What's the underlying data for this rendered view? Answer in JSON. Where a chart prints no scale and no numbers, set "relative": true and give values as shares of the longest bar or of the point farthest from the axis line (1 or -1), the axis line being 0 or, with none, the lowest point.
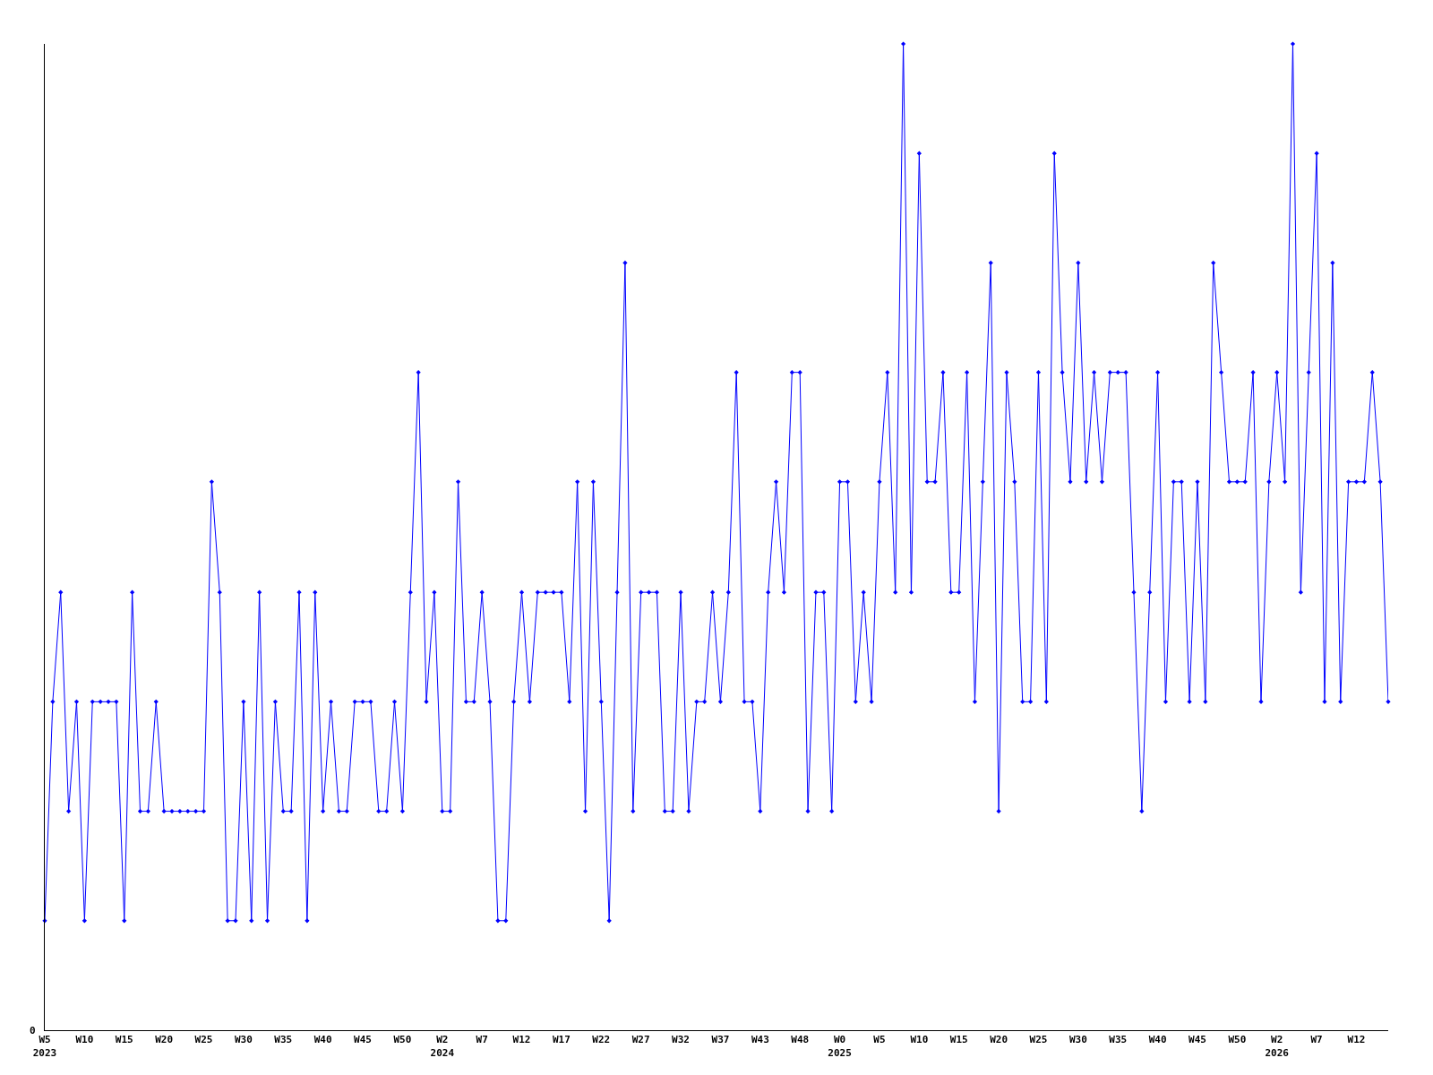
{
  "chart_data": {
    "type": "line",
    "relative": true,
    "marker": "diamond",
    "line_style": "solid",
    "grid": false,
    "annotations": [
      "0"
    ],
    "categories": [
      "W5\n2023",
      null,
      null,
      null,
      null,
      "W10",
      null,
      null,
      null,
      null,
      "W15",
      null,
      null,
      null,
      null,
      "W20",
      null,
      null,
      null,
      null,
      "W25",
      null,
      null,
      null,
      null,
      "W30",
      null,
      null,
      null,
      null,
      "W35",
      null,
      null,
      null,
      null,
      "W40",
      null,
      null,
      null,
      null,
      "W45",
      null,
      null,
      null,
      null,
      "W50",
      null,
      null,
      null,
      null,
      "W2\n2024",
      null,
      null,
      null,
      null,
      "W7",
      null,
      null,
      null,
      null,
      "W12",
      null,
      null,
      null,
      null,
      "W17",
      null,
      null,
      null,
      null,
      "W22",
      null,
      null,
      null,
      null,
      "W27",
      null,
      null,
      null,
      null,
      "W32",
      null,
      null,
      null,
      null,
      "W37",
      null,
      null,
      null,
      null,
      "W43",
      null,
      null,
      null,
      null,
      "W48",
      null,
      null,
      null,
      null,
      "W0\n2025",
      null,
      null,
      null,
      null,
      "W5",
      null,
      null,
      null,
      null,
      "W10",
      null,
      null,
      null,
      null,
      "W15",
      null,
      null,
      null,
      null,
      "W20",
      null,
      null,
      null,
      null,
      "W25",
      null,
      null,
      null,
      null,
      "W30",
      null,
      null,
      null,
      null,
      "W35",
      null,
      null,
      null,
      null,
      "W40",
      null,
      null,
      null,
      null,
      "W45",
      null,
      null,
      null,
      null,
      "W50",
      null,
      null,
      null,
      null,
      "W2\n2026",
      null,
      null,
      null,
      null,
      "W7",
      null,
      null,
      null,
      null,
      "W12",
      null,
      null,
      null,
      null
    ],
    "series": [
      {
        "color": "#0000ff",
        "values": [
          0.111,
          0.333,
          0.444,
          0.222,
          0.333,
          0.111,
          0.333,
          0.333,
          0.333,
          0.333,
          0.111,
          0.444,
          0.222,
          0.222,
          0.333,
          0.222,
          0.222,
          0.222,
          0.222,
          0.222,
          0.222,
          0.556,
          0.444,
          0.111,
          0.111,
          0.333,
          0.111,
          0.444,
          0.111,
          0.333,
          0.222,
          0.222,
          0.444,
          0.111,
          0.444,
          0.222,
          0.333,
          0.222,
          0.222,
          0.333,
          0.333,
          0.333,
          0.222,
          0.222,
          0.333,
          0.222,
          0.444,
          0.667,
          0.333,
          0.444,
          0.222,
          0.222,
          0.556,
          0.333,
          0.333,
          0.444,
          0.333,
          0.111,
          0.111,
          0.333,
          0.444,
          0.333,
          0.444,
          0.444,
          0.444,
          0.444,
          0.333,
          0.556,
          0.222,
          0.556,
          0.333,
          0.111,
          0.444,
          0.778,
          0.222,
          0.444,
          0.444,
          0.444,
          0.222,
          0.222,
          0.444,
          0.222,
          0.333,
          0.333,
          0.444,
          0.333,
          0.444,
          0.667,
          0.333,
          0.333,
          0.222,
          0.444,
          0.556,
          0.444,
          0.667,
          0.667,
          0.222,
          0.444,
          0.444,
          0.222,
          0.556,
          0.556,
          0.333,
          0.444,
          0.333,
          0.556,
          0.667,
          0.444,
          1,
          0.444,
          0.889,
          0.556,
          0.556,
          0.667,
          0.444,
          0.444,
          0.667,
          0.333,
          0.556,
          0.778,
          0.222,
          0.667,
          0.556,
          0.333,
          0.333,
          0.667,
          0.333,
          0.889,
          0.667,
          0.556,
          0.778,
          0.556,
          0.667,
          0.556,
          0.667,
          0.667,
          0.667,
          0.444,
          0.222,
          0.444,
          0.667,
          0.333,
          0.556,
          0.556,
          0.333,
          0.556,
          0.333,
          0.778,
          0.667,
          0.556,
          0.556,
          0.556,
          0.667,
          0.333,
          0.556,
          0.667,
          0.556,
          1,
          0.444,
          0.667,
          0.889,
          0.333,
          0.778,
          0.333,
          0.556,
          0.556,
          0.556,
          0.667,
          0.556,
          0.333
        ]
      }
    ]
  }
}
